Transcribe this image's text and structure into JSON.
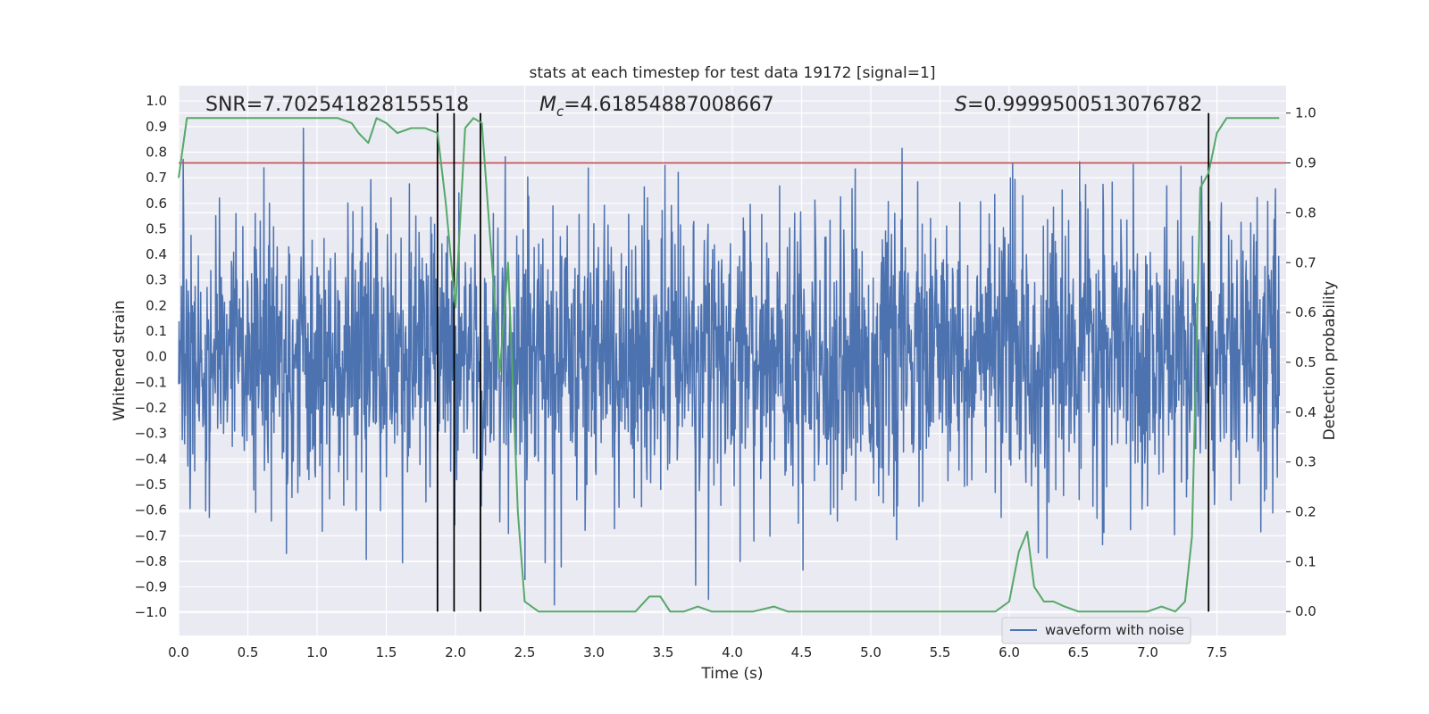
{
  "chart_data": {
    "type": "line",
    "title": "stats at each timestep for test data 19172 [signal=1]",
    "xlabel": "Time (s)",
    "ylabel": "Whitened strain",
    "y2label": "Detection probability",
    "xlim": [
      0.0,
      8.0
    ],
    "ylim": [
      -1.09,
      1.06
    ],
    "y2lim": [
      -0.048,
      1.055
    ],
    "x_ticks": [
      "0.0",
      "0.5",
      "1.0",
      "1.5",
      "2.0",
      "2.5",
      "3.0",
      "3.5",
      "4.0",
      "4.5",
      "5.0",
      "5.5",
      "6.0",
      "6.5",
      "7.0",
      "7.5"
    ],
    "y_ticks": [
      "1.0",
      "0.9",
      "0.8",
      "0.7",
      "0.6",
      "0.5",
      "0.4",
      "0.3",
      "0.2",
      "0.1",
      "0.0",
      "-0.1",
      "-0.2",
      "-0.3",
      "-0.4",
      "-0.5",
      "-0.6",
      "-0.7",
      "-0.8",
      "-0.9",
      "-1.0"
    ],
    "y2_ticks": [
      "1.0",
      "0.9",
      "0.8",
      "0.7",
      "0.6",
      "0.5",
      "0.4",
      "0.3",
      "0.2",
      "0.1",
      "0.0"
    ],
    "annotations": {
      "snr": "SNR=7.702541828155518",
      "mc_symbol": "M",
      "mc_sub": "c",
      "mc_value": "=4.61854887008667",
      "s_symbol": "S",
      "s_value": "=0.9999500513076782"
    },
    "legend": {
      "label": "waveform with noise",
      "position": "lower right"
    },
    "threshold_line": {
      "y2": 0.9,
      "color": "#c44e52"
    },
    "vertical_lines_x": [
      1.87,
      1.99,
      2.18,
      7.44
    ],
    "series": [
      {
        "name": "waveform with noise",
        "color": "#4c72b0",
        "style": "dense noisy waveform",
        "approx_envelope": {
          "positive_typical": 0.55,
          "negative_typical": -0.55,
          "max": 0.95,
          "min": -0.97
        }
      },
      {
        "color": "#55a868",
        "axis": "y2",
        "x": [
          0.0,
          0.06,
          0.15,
          0.25,
          0.35,
          0.45,
          0.55,
          0.65,
          0.75,
          0.85,
          0.95,
          1.05,
          1.15,
          1.25,
          1.3,
          1.37,
          1.43,
          1.5,
          1.58,
          1.68,
          1.78,
          1.87,
          1.93,
          2.0,
          2.07,
          2.13,
          2.19,
          2.25,
          2.32,
          2.38,
          2.45,
          2.5,
          2.6,
          2.7,
          2.8,
          2.9,
          3.0,
          3.1,
          3.2,
          3.3,
          3.4,
          3.48,
          3.55,
          3.65,
          3.75,
          3.85,
          4.0,
          4.15,
          4.3,
          4.4,
          4.5,
          4.7,
          5.0,
          5.3,
          5.5,
          5.7,
          5.9,
          6.0,
          6.07,
          6.13,
          6.18,
          6.25,
          6.32,
          6.4,
          6.5,
          6.7,
          6.9,
          7.0,
          7.1,
          7.2,
          7.27,
          7.32,
          7.38,
          7.44,
          7.5,
          7.57,
          7.65,
          7.75,
          7.85,
          7.95
        ],
        "y": [
          0.87,
          0.99,
          0.99,
          0.99,
          0.99,
          0.99,
          0.99,
          0.99,
          0.99,
          0.99,
          0.99,
          0.99,
          0.99,
          0.98,
          0.96,
          0.94,
          0.99,
          0.98,
          0.96,
          0.97,
          0.97,
          0.96,
          0.82,
          0.61,
          0.97,
          0.99,
          0.98,
          0.75,
          0.48,
          0.7,
          0.2,
          0.02,
          0.0,
          0.0,
          0.0,
          0.0,
          0.0,
          0.0,
          0.0,
          0.0,
          0.03,
          0.03,
          0.0,
          0.0,
          0.01,
          0.0,
          0.0,
          0.0,
          0.01,
          0.0,
          0.0,
          0.0,
          0.0,
          0.0,
          0.0,
          0.0,
          0.0,
          0.02,
          0.12,
          0.16,
          0.05,
          0.02,
          0.02,
          0.01,
          0.0,
          0.0,
          0.0,
          0.0,
          0.01,
          0.0,
          0.02,
          0.15,
          0.85,
          0.88,
          0.96,
          0.99,
          0.99,
          0.99,
          0.99,
          0.99
        ]
      }
    ]
  }
}
